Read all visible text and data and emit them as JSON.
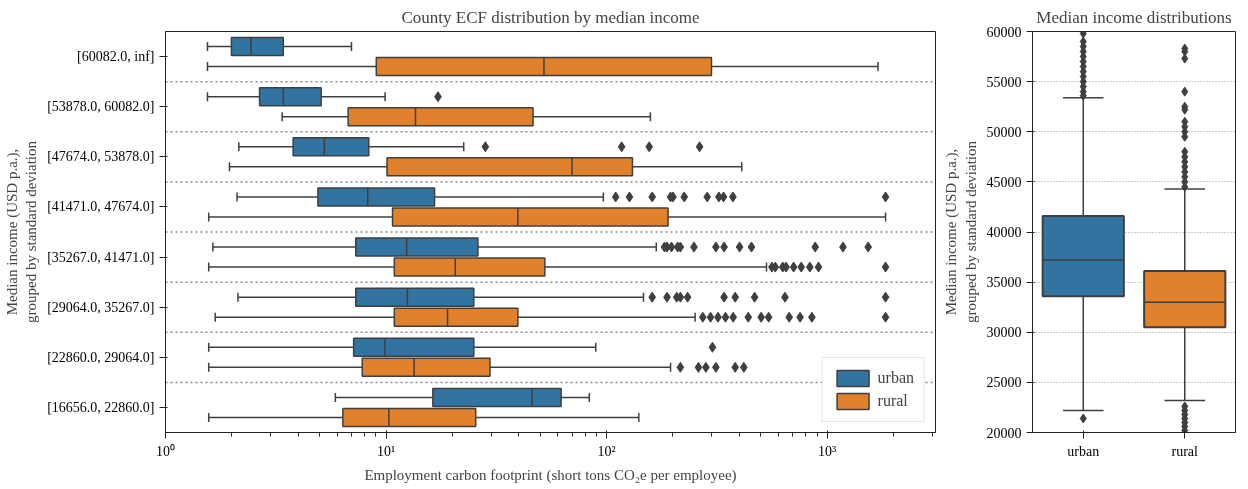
{
  "chart_data": [
    {
      "type": "box",
      "orientation": "horizontal",
      "title": "County ECF distribution by median income",
      "xlabel": "Employment carbon footprint (short tons CO₂e per employee)",
      "ylabel": "Median income (USD p.a.),\ngrouped by standard deviation",
      "categories": [
        "[60082.0, inf]",
        "[53878.0, 60082.0]",
        "[47674.0, 53878.0]",
        "[41471.0, 47674.0]",
        "[35267.0, 41471.0]",
        "[29064.0, 35267.0]",
        "[22860.0, 29064.0]",
        "[16656.0, 22860.0]"
      ],
      "log": "x",
      "xlim": [
        1,
        3100
      ],
      "xticks": [
        {
          "value": 1,
          "label": "10⁰"
        },
        {
          "value": 10,
          "label": "10¹"
        },
        {
          "value": 100,
          "label": "10²"
        },
        {
          "value": 1000,
          "label": "10³"
        }
      ],
      "grid": "y",
      "legend": "bottom right",
      "marker": "diamond",
      "series": [
        {
          "name": "urban",
          "color": "#3274a1",
          "boxes": [
            {
              "low": 1.55,
              "q1": 1.99,
              "median": 2.44,
              "q3": 3.42,
              "high": 6.97
            },
            {
              "low": 1.55,
              "q1": 2.67,
              "median": 3.42,
              "q3": 5.08,
              "high": 9.9,
              "outliers": [
                17.2
              ]
            },
            {
              "low": 2.15,
              "q1": 3.79,
              "median": 5.25,
              "q3": 8.35,
              "high": 22.5,
              "outliers": [
                28.2,
                117,
                156,
                264
              ]
            },
            {
              "low": 2.11,
              "q1": 4.91,
              "median": 8.26,
              "q3": 16.6,
              "high": 96.7,
              "outliers": [
                110,
                127,
                161,
                195,
                200,
                225,
                286,
                323,
                339,
                374,
                1840
              ]
            },
            {
              "low": 1.64,
              "q1": 7.29,
              "median": 12.4,
              "q3": 26.1,
              "high": 168,
              "outliers": [
                183,
                188,
                197,
                210,
                216,
                249,
                313,
                341,
                401,
                454,
                883,
                1180,
                1535
              ]
            },
            {
              "low": 2.13,
              "q1": 7.29,
              "median": 12.5,
              "q3": 25,
              "high": 147,
              "outliers": [
                161,
                188,
                208,
                216,
                233,
                341,
                383,
                469,
                644,
                1840
              ]
            },
            {
              "low": 1.57,
              "q1": 7.13,
              "median": 9.89,
              "q3": 25,
              "high": 89.3,
              "outliers": [
                302
              ]
            },
            {
              "low": 5.89,
              "q1": 16.3,
              "median": 45.9,
              "q3": 62.2,
              "high": 83.5
            }
          ]
        },
        {
          "name": "rural",
          "color": "#e1812c",
          "boxes": [
            {
              "low": 1.55,
              "q1": 9.03,
              "median": 52,
              "q3": 299,
              "high": 1700
            },
            {
              "low": 3.38,
              "q1": 6.73,
              "median": 13.6,
              "q3": 46.4,
              "high": 158
            },
            {
              "low": 1.95,
              "q1": 10.1,
              "median": 69.7,
              "q3": 131,
              "high": 410
            },
            {
              "low": 1.57,
              "q1": 10.7,
              "median": 39.6,
              "q3": 190,
              "high": 1840
            },
            {
              "low": 1.57,
              "q1": 10.9,
              "median": 20.6,
              "q3": 52.5,
              "high": 531,
              "outliers": [
                562,
                582,
                629,
                651,
                705,
                763,
                835,
                914,
                1840
              ]
            },
            {
              "low": 1.68,
              "q1": 10.9,
              "median": 19,
              "q3": 39.6,
              "high": 252,
              "outliers": [
                273,
                296,
                320,
                346,
                375,
                439,
                502,
                543,
                673,
                754,
                853,
                1840
              ]
            },
            {
              "low": 1.57,
              "q1": 7.8,
              "median": 13.4,
              "q3": 29.6,
              "high": 195,
              "outliers": [
                216,
                261,
                282,
                313,
                383,
                419
              ]
            },
            {
              "low": 1.57,
              "q1": 6.37,
              "median": 10.3,
              "q3": 25.5,
              "high": 140
            }
          ]
        }
      ]
    },
    {
      "type": "box",
      "title": "Median income distributions",
      "ylabel": "Median income (USD p.a.),\ngrouped by standard deviation",
      "categories": [
        "urban",
        "rural"
      ],
      "colors": [
        "#3274a1",
        "#e1812c"
      ],
      "ylim": [
        20000,
        60000
      ],
      "yticks": [
        20000,
        25000,
        30000,
        35000,
        40000,
        45000,
        50000,
        55000,
        60000
      ],
      "grid": "y",
      "marker": "diamond",
      "boxes": [
        {
          "low": 22200,
          "q1": 33600,
          "median": 37200,
          "q3": 41600,
          "high": 53400,
          "outliers": [
            21400,
            53600,
            54000,
            54500,
            55000,
            55500,
            56000,
            56500,
            57000,
            57500,
            58000,
            58500,
            59000,
            59800
          ]
        },
        {
          "low": 23200,
          "q1": 30500,
          "median": 33000,
          "q3": 36100,
          "high": 44300,
          "outliers": [
            20200,
            20600,
            21000,
            21400,
            21800,
            22200,
            22600,
            44500,
            45000,
            45500,
            46000,
            46500,
            47000,
            47500,
            48000,
            49500,
            50000,
            50500,
            51000,
            52200,
            52500,
            54000,
            57300,
            58000,
            58300
          ]
        }
      ]
    }
  ]
}
